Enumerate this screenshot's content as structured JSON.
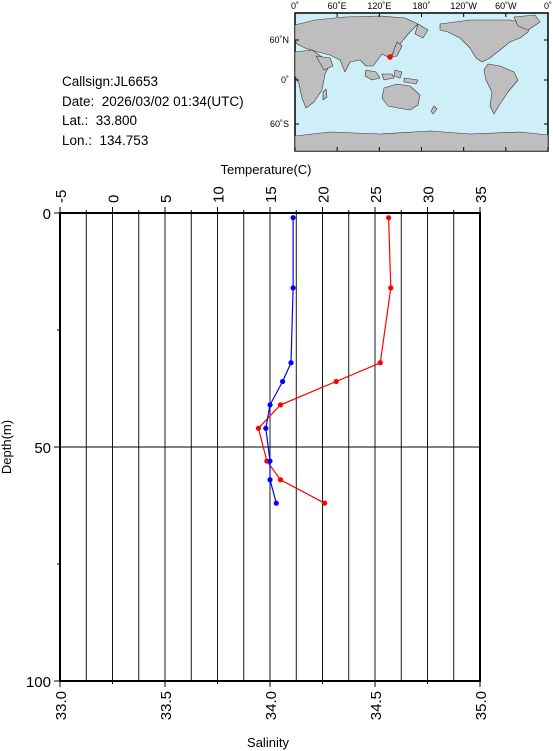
{
  "info": {
    "callsign": "Callsign:JL6653",
    "date": "Date:  2026/03/02 01:34(UTC)",
    "lat": "Lat.:  33.800",
    "lon": "Lon.:  134.753"
  },
  "map": {
    "lon_labels": [
      "0˚",
      "60˚E",
      "120˚E",
      "180˚",
      "120˚W",
      "60˚W",
      "0˚"
    ],
    "lat_labels": [
      "60˚N",
      "0˚",
      "60˚S"
    ],
    "ocean_color": "#cfeff8",
    "land_color": "#bebebe",
    "marker_color": "#ff0000"
  },
  "chart_data": {
    "type": "line",
    "top_axis_label": "Temperature(C)",
    "bottom_axis_label": "Salinity",
    "ylabel": "Depth(m)",
    "temperature_ticks": [
      "-5",
      "0",
      "5",
      "10",
      "15",
      "20",
      "25",
      "30",
      "35"
    ],
    "salinity_ticks": [
      "33.0",
      "33.5",
      "34.0",
      "34.5",
      "35.0"
    ],
    "depth_ticks": [
      "0",
      "50",
      "100"
    ],
    "temperature_range": [
      -5,
      35
    ],
    "salinity_range": [
      33.0,
      35.0
    ],
    "depth_range": [
      0,
      100
    ],
    "series": [
      {
        "quantity": "temperature",
        "color": "#ff0000",
        "points": [
          {
            "x": 26.3,
            "depth": 1
          },
          {
            "x": 26.5,
            "depth": 16
          },
          {
            "x": 25.5,
            "depth": 32
          },
          {
            "x": 21.3,
            "depth": 36
          },
          {
            "x": 16.0,
            "depth": 41
          },
          {
            "x": 13.9,
            "depth": 46
          },
          {
            "x": 14.7,
            "depth": 53
          },
          {
            "x": 16.0,
            "depth": 57
          },
          {
            "x": 20.2,
            "depth": 62
          }
        ]
      },
      {
        "quantity": "salinity",
        "color": "#0000ff",
        "points": [
          {
            "x": 34.11,
            "depth": 1
          },
          {
            "x": 34.11,
            "depth": 16
          },
          {
            "x": 34.1,
            "depth": 32
          },
          {
            "x": 34.06,
            "depth": 36
          },
          {
            "x": 34.0,
            "depth": 41
          },
          {
            "x": 33.98,
            "depth": 46
          },
          {
            "x": 34.0,
            "depth": 53
          },
          {
            "x": 34.0,
            "depth": 57
          },
          {
            "x": 34.03,
            "depth": 62
          }
        ]
      }
    ]
  }
}
